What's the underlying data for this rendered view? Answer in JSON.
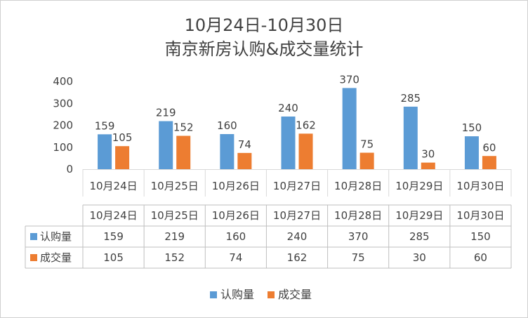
{
  "chart_data": {
    "type": "bar",
    "title": "10月24日-10月30日",
    "subtitle": "南京新房认购&成交量统计",
    "categories": [
      "10月24日",
      "10月25日",
      "10月26日",
      "10月27日",
      "10月28日",
      "10月29日",
      "10月30日"
    ],
    "series": [
      {
        "name": "认购量",
        "color": "#5B9BD5",
        "values": [
          159,
          219,
          160,
          240,
          370,
          285,
          150
        ]
      },
      {
        "name": "成交量",
        "color": "#ED7D31",
        "values": [
          105,
          152,
          74,
          162,
          75,
          30,
          60
        ]
      }
    ],
    "ylim": [
      0,
      400
    ],
    "yticks": [
      0,
      100,
      200,
      300,
      400
    ],
    "grid": false,
    "legend": "bottom",
    "data_table": true
  }
}
